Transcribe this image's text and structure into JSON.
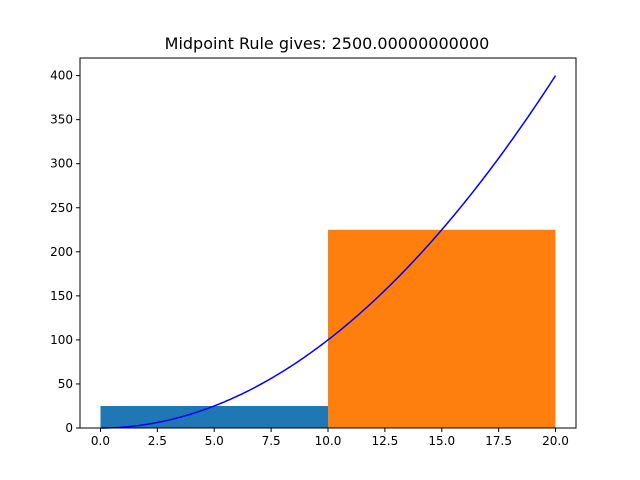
{
  "chart_data": {
    "type": "bar",
    "title": "Midpoint Rule gives:  2500.00000000000",
    "xlabel": "",
    "ylabel": "",
    "xlim": [
      -0.9,
      20.9
    ],
    "ylim": [
      0,
      420
    ],
    "x_ticks": [
      "0.0",
      "2.5",
      "5.0",
      "7.5",
      "10.0",
      "12.5",
      "15.0",
      "17.5",
      "20.0"
    ],
    "y_ticks": [
      "0",
      "50",
      "100",
      "150",
      "200",
      "250",
      "300",
      "350",
      "400"
    ],
    "bars": [
      {
        "x_start": 0,
        "x_end": 10,
        "height": 25,
        "color": "#1f77b4"
      },
      {
        "x_start": 10,
        "x_end": 20,
        "height": 225,
        "color": "#ff7f0e"
      }
    ],
    "curve": {
      "color": "#0000ff",
      "x": [
        0,
        2,
        4,
        6,
        8,
        10,
        12,
        14,
        16,
        18,
        20
      ],
      "y": [
        0,
        4,
        16,
        36,
        64,
        100,
        144,
        196,
        256,
        324,
        400
      ]
    },
    "grid": false,
    "legend": "none"
  }
}
